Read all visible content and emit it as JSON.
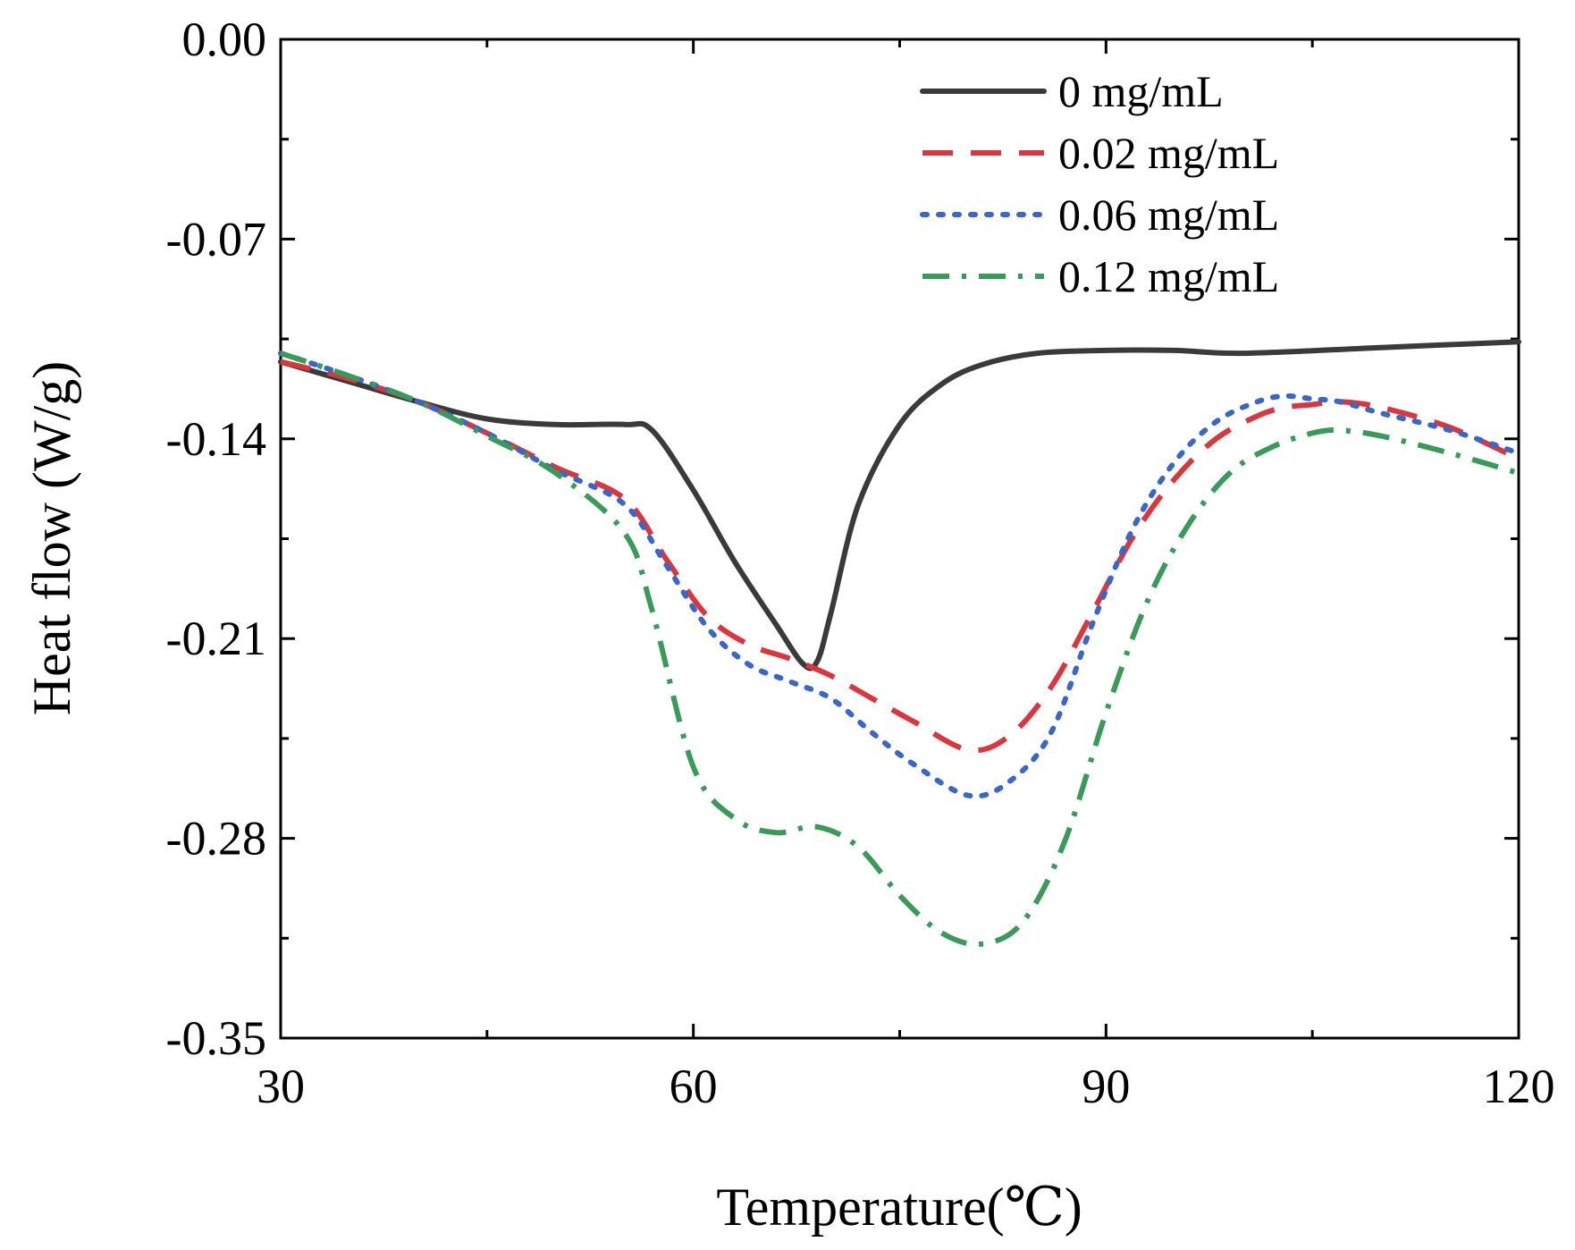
{
  "chart_data": {
    "type": "line",
    "xlabel": "Temperature(℃)",
    "ylabel": "Heat flow (W/g)",
    "xlim": [
      30,
      120
    ],
    "ylim": [
      -0.35,
      0.0
    ],
    "xticks": [
      30,
      60,
      90,
      120
    ],
    "xtick_labels": [
      "30",
      "60",
      "90",
      "120"
    ],
    "yticks": [
      0.0,
      -0.07,
      -0.14,
      -0.21,
      -0.28,
      -0.35
    ],
    "ytick_labels": [
      "0.00",
      "-0.07",
      "-0.14",
      "-0.21",
      "-0.28",
      "-0.35"
    ],
    "legend_position": "top-right",
    "series": [
      {
        "name": "0 mg/mL",
        "color": "#3a3a3a",
        "style": "solid",
        "x": [
          30,
          35,
          40,
          45,
          50,
          55,
          57,
          60,
          63,
          66,
          68,
          69,
          70,
          72,
          75,
          78,
          81,
          85,
          90,
          95,
          100,
          110,
          120
        ],
        "y": [
          -0.113,
          -0.12,
          -0.127,
          -0.133,
          -0.135,
          -0.135,
          -0.137,
          -0.158,
          -0.183,
          -0.205,
          -0.219,
          -0.218,
          -0.201,
          -0.163,
          -0.135,
          -0.121,
          -0.114,
          -0.11,
          -0.109,
          -0.109,
          -0.11,
          -0.108,
          -0.106
        ]
      },
      {
        "name": "0.02 mg/mL",
        "color": "#d9363e",
        "style": "dashed",
        "x": [
          30,
          35,
          40,
          45,
          50,
          55,
          58,
          61,
          64,
          67,
          70,
          73,
          76,
          80,
          83,
          86,
          89,
          92,
          95,
          98,
          101,
          103,
          105,
          107,
          110,
          115,
          120
        ],
        "y": [
          -0.113,
          -0.119,
          -0.127,
          -0.138,
          -0.15,
          -0.161,
          -0.182,
          -0.202,
          -0.212,
          -0.217,
          -0.223,
          -0.231,
          -0.239,
          -0.249,
          -0.244,
          -0.227,
          -0.201,
          -0.174,
          -0.154,
          -0.14,
          -0.132,
          -0.129,
          -0.128,
          -0.127,
          -0.129,
          -0.136,
          -0.147
        ]
      },
      {
        "name": "0.06 mg/mL",
        "color": "#3a66c8",
        "style": "dotted",
        "x": [
          30,
          35,
          40,
          45,
          50,
          55,
          58,
          61,
          64,
          67,
          70,
          73,
          76,
          80,
          83,
          86,
          89,
          92,
          95,
          98,
          101,
          103,
          105,
          107,
          110,
          115,
          120
        ],
        "y": [
          -0.11,
          -0.118,
          -0.127,
          -0.138,
          -0.151,
          -0.163,
          -0.184,
          -0.206,
          -0.219,
          -0.225,
          -0.231,
          -0.243,
          -0.254,
          -0.265,
          -0.26,
          -0.243,
          -0.205,
          -0.171,
          -0.148,
          -0.134,
          -0.127,
          -0.125,
          -0.126,
          -0.127,
          -0.131,
          -0.137,
          -0.145
        ]
      },
      {
        "name": "0.12 mg/mL",
        "color": "#3a9a5a",
        "style": "dashdot",
        "x": [
          30,
          35,
          40,
          45,
          50,
          55,
          57,
          60,
          63,
          66,
          69,
          72,
          75,
          78,
          81,
          84,
          87,
          90,
          93,
          96,
          99,
          102,
          105,
          107,
          110,
          115,
          120
        ],
        "y": [
          -0.11,
          -0.118,
          -0.127,
          -0.139,
          -0.152,
          -0.173,
          -0.2,
          -0.255,
          -0.273,
          -0.278,
          -0.276,
          -0.283,
          -0.3,
          -0.313,
          -0.317,
          -0.309,
          -0.281,
          -0.236,
          -0.197,
          -0.17,
          -0.152,
          -0.143,
          -0.138,
          -0.137,
          -0.139,
          -0.145,
          -0.152
        ]
      }
    ]
  }
}
